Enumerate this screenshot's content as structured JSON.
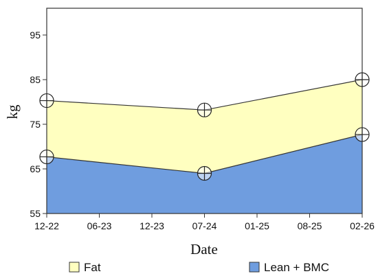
{
  "chart_data": {
    "type": "area",
    "xlabel": "Date",
    "ylabel": "kg",
    "x_ticks": [
      "12-22",
      "06-23",
      "12-23",
      "07-24",
      "01-25",
      "08-25",
      "02-26"
    ],
    "y_ticks": [
      55,
      65,
      75,
      85,
      95
    ],
    "ylim": [
      55,
      101
    ],
    "xlim": [
      0,
      6
    ],
    "grid": false,
    "legend_placement": "bottom",
    "x": [
      0,
      3,
      6
    ],
    "series": [
      {
        "name": "Lean + BMC",
        "values": [
          67.7,
          64.0,
          72.7
        ],
        "color": "#6f9ddf"
      },
      {
        "name": "Fat",
        "values": [
          80.3,
          78.2,
          85.0
        ],
        "color": "#ffffc0"
      }
    ]
  }
}
